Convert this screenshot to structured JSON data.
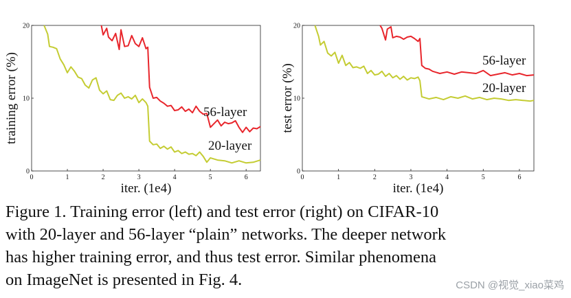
{
  "chart_data": [
    {
      "type": "line",
      "title": "",
      "xlabel": "iter. (1e4)",
      "ylabel": "training error (%)",
      "xlim": [
        0,
        6.4
      ],
      "ylim": [
        0,
        20
      ],
      "xticks": [
        "0",
        "1",
        "2",
        "3",
        "4",
        "5",
        "6"
      ],
      "yticks": [
        "0",
        "10",
        "20"
      ],
      "grid": false,
      "series": [
        {
          "name": "56-layer",
          "color": "#e8252b",
          "x": [
            1.95,
            2.0,
            2.1,
            2.15,
            2.25,
            2.35,
            2.45,
            2.5,
            2.6,
            2.7,
            2.8,
            2.9,
            3.0,
            3.1,
            3.2,
            3.25,
            3.3,
            3.4,
            3.5,
            3.6,
            3.7,
            3.8,
            3.9,
            4.0,
            4.1,
            4.2,
            4.3,
            4.4,
            4.5,
            4.6,
            4.7,
            4.8,
            4.9,
            5.0,
            5.1,
            5.2,
            5.3,
            5.4,
            5.5,
            5.6,
            5.7,
            5.8,
            5.9,
            6.0,
            6.1,
            6.2,
            6.3,
            6.4
          ],
          "values": [
            20.0,
            18.7,
            19.6,
            18.4,
            17.9,
            18.9,
            16.7,
            19.4,
            17.1,
            17.2,
            18.6,
            17.5,
            17.1,
            18.3,
            16.8,
            17.0,
            11.5,
            10.0,
            10.1,
            9.6,
            9.3,
            8.9,
            9.0,
            8.3,
            8.4,
            8.8,
            8.2,
            8.5,
            8.0,
            8.9,
            8.2,
            7.8,
            7.9,
            6.0,
            6.5,
            7.0,
            6.2,
            6.7,
            6.5,
            6.6,
            6.9,
            6.0,
            5.3,
            6.0,
            5.4,
            5.9,
            5.8,
            6.1
          ]
        },
        {
          "name": "20-layer",
          "color": "#c4cc32",
          "x": [
            0.35,
            0.45,
            0.5,
            0.6,
            0.7,
            0.8,
            0.9,
            1.0,
            1.1,
            1.2,
            1.3,
            1.4,
            1.5,
            1.6,
            1.7,
            1.8,
            1.9,
            2.0,
            2.1,
            2.2,
            2.3,
            2.4,
            2.5,
            2.6,
            2.7,
            2.8,
            2.9,
            3.0,
            3.1,
            3.2,
            3.25,
            3.3,
            3.4,
            3.5,
            3.6,
            3.7,
            3.8,
            3.9,
            4.0,
            4.1,
            4.2,
            4.3,
            4.4,
            4.5,
            4.6,
            4.7,
            4.8,
            4.9,
            5.0,
            5.2,
            5.4,
            5.6,
            5.8,
            6.0,
            6.2,
            6.4
          ],
          "values": [
            20.0,
            18.8,
            17.1,
            17.0,
            16.8,
            15.4,
            14.6,
            13.5,
            14.3,
            13.7,
            12.9,
            12.7,
            11.8,
            11.4,
            12.5,
            12.8,
            11.1,
            10.6,
            11.0,
            9.8,
            9.7,
            10.4,
            10.7,
            10.0,
            10.2,
            9.9,
            10.4,
            9.4,
            9.9,
            9.4,
            8.9,
            4.1,
            3.6,
            3.7,
            3.1,
            3.4,
            3.0,
            3.3,
            2.6,
            2.8,
            2.4,
            2.6,
            2.3,
            2.4,
            2.1,
            2.6,
            2.0,
            1.2,
            1.8,
            1.5,
            1.4,
            1.1,
            1.4,
            1.1,
            1.2,
            1.5
          ]
        }
      ]
    },
    {
      "type": "line",
      "title": "",
      "xlabel": "iter. (1e4)",
      "ylabel": "test error (%)",
      "xlim": [
        0,
        6.4
      ],
      "ylim": [
        0,
        20
      ],
      "xticks": [
        "0",
        "1",
        "2",
        "3",
        "4",
        "5",
        "6"
      ],
      "yticks": [
        "0",
        "10",
        "20"
      ],
      "grid": false,
      "series": [
        {
          "name": "56-layer",
          "color": "#e8252b",
          "x": [
            2.15,
            2.2,
            2.3,
            2.35,
            2.45,
            2.5,
            2.6,
            2.7,
            2.8,
            2.9,
            3.0,
            3.1,
            3.2,
            3.25,
            3.3,
            3.4,
            3.5,
            3.6,
            3.8,
            4.0,
            4.2,
            4.4,
            4.6,
            4.8,
            5.0,
            5.2,
            5.4,
            5.6,
            5.8,
            6.0,
            6.2,
            6.4
          ],
          "values": [
            20.0,
            19.6,
            18.0,
            19.5,
            19.8,
            18.3,
            18.5,
            18.4,
            18.1,
            18.4,
            18.5,
            18.2,
            17.8,
            18.2,
            14.5,
            14.1,
            14.0,
            13.7,
            13.4,
            13.6,
            13.3,
            13.6,
            13.5,
            13.4,
            13.8,
            13.1,
            13.3,
            13.5,
            13.2,
            13.4,
            13.1,
            13.2
          ]
        },
        {
          "name": "20-layer",
          "color": "#c4cc32",
          "x": [
            0.35,
            0.45,
            0.5,
            0.6,
            0.7,
            0.8,
            0.9,
            1.0,
            1.1,
            1.2,
            1.3,
            1.4,
            1.5,
            1.6,
            1.7,
            1.8,
            1.9,
            2.0,
            2.1,
            2.2,
            2.3,
            2.4,
            2.5,
            2.6,
            2.7,
            2.8,
            2.9,
            3.0,
            3.1,
            3.2,
            3.25,
            3.3,
            3.5,
            3.7,
            3.9,
            4.1,
            4.3,
            4.5,
            4.7,
            4.9,
            5.1,
            5.3,
            5.5,
            5.7,
            5.9,
            6.1,
            6.3,
            6.4
          ],
          "values": [
            20.0,
            18.5,
            17.3,
            17.8,
            16.2,
            15.8,
            16.3,
            14.8,
            15.9,
            14.5,
            14.9,
            14.2,
            14.3,
            14.1,
            14.4,
            13.4,
            13.8,
            13.2,
            13.3,
            13.7,
            13.0,
            13.4,
            12.8,
            13.1,
            12.6,
            13.0,
            12.5,
            12.8,
            12.7,
            12.9,
            12.4,
            10.2,
            9.9,
            10.1,
            9.8,
            10.2,
            10.0,
            10.3,
            9.9,
            10.1,
            9.8,
            10.0,
            9.9,
            9.7,
            9.8,
            9.7,
            9.6,
            9.7
          ]
        }
      ]
    }
  ],
  "caption": [
    "Figure 1. Training error (left) and test error (right) on CIFAR-10",
    "with 20-layer and 56-layer “plain” networks. The deeper network",
    "has higher training error, and thus test error.  Similar phenomena",
    "on ImageNet is presented in Fig. 4."
  ],
  "watermark": "CSDN @视觉_xiao菜鸡"
}
